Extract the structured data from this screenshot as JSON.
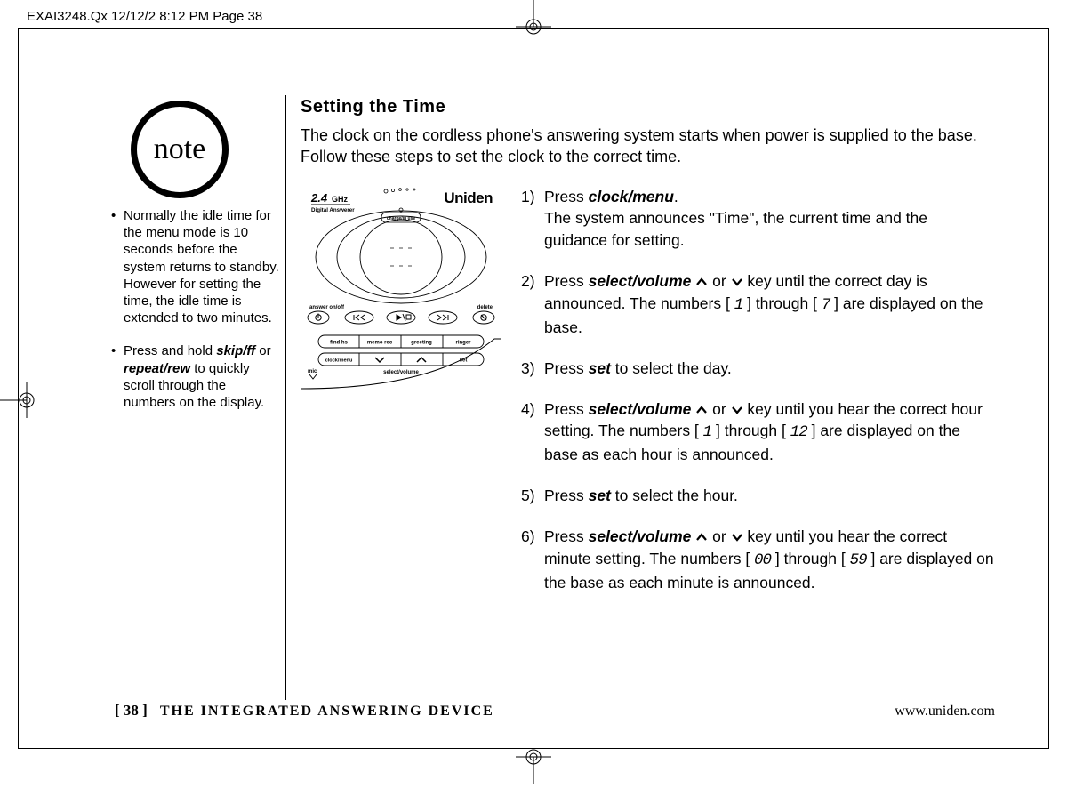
{
  "header": {
    "crop_text": "EXAI3248.Qx  12/12/2 8:12 PM  Page 38"
  },
  "note": {
    "label": "note",
    "bullets": [
      {
        "pre": "Normally the idle time for the menu mode is 10 seconds before the system returns to standby. However for setting the time, the idle time is extended to two minutes."
      },
      {
        "prefix": "Press and hold ",
        "bi1": "skip/ff",
        "mid": " or ",
        "bi2": "repeat/rew",
        "suffix": " to quickly scroll through the numbers on the display."
      }
    ]
  },
  "main": {
    "heading": "Setting the Time",
    "intro": "The clock on the cordless phone's answering system starts when power is supplied to the base. Follow these steps to set the clock to the correct time.",
    "steps": [
      {
        "num": "1)",
        "segments": [
          {
            "t": "Press "
          },
          {
            "bi": "clock/menu"
          },
          {
            "t": "."
          },
          {
            "br": true
          },
          {
            "t": "The system announces \"Time\", the current time and the guidance for setting."
          }
        ]
      },
      {
        "num": "2)",
        "segments": [
          {
            "t": "Press "
          },
          {
            "bi": "select/volume"
          },
          {
            "t": " "
          },
          {
            "chev": "up"
          },
          {
            "t": " or "
          },
          {
            "chev": "down"
          },
          {
            "t": " key until the correct day is announced. The numbers [ "
          },
          {
            "seg": "1"
          },
          {
            "t": " ] through [ "
          },
          {
            "seg": "7"
          },
          {
            "t": " ] are displayed on the base."
          }
        ]
      },
      {
        "num": "3)",
        "segments": [
          {
            "t": "Press "
          },
          {
            "bi": "set"
          },
          {
            "t": " to select the day."
          }
        ]
      },
      {
        "num": "4)",
        "segments": [
          {
            "t": "Press "
          },
          {
            "bi": "select/volume"
          },
          {
            "t": " "
          },
          {
            "chev": "up"
          },
          {
            "t": " or "
          },
          {
            "chev": "down"
          },
          {
            "t": " key until you hear the correct hour setting. The numbers [ "
          },
          {
            "seg": "1"
          },
          {
            "t": " ] through [ "
          },
          {
            "seg": "12"
          },
          {
            "t": " ] are displayed on the base as each hour is announced."
          }
        ]
      },
      {
        "num": "5)",
        "segments": [
          {
            "t": "Press "
          },
          {
            "bi": "set"
          },
          {
            "t": " to select the hour."
          }
        ]
      },
      {
        "num": "6)",
        "segments": [
          {
            "t": "Press "
          },
          {
            "bi": "select/volume"
          },
          {
            "t": " "
          },
          {
            "chev": "up"
          },
          {
            "t": " or "
          },
          {
            "chev": "down"
          },
          {
            "t": " key until you hear the correct minute setting. The numbers [ "
          },
          {
            "seg": "00"
          },
          {
            "t": " ] through [ "
          },
          {
            "seg": "59"
          },
          {
            "t": " ] are displayed on the base as each minute is announced."
          }
        ]
      }
    ]
  },
  "device": {
    "brand": "Uniden",
    "freq": "2.4",
    "ghz": "GHz",
    "subtitle": "Digital Answerer",
    "charge": "charge/in use",
    "answer": "answer on/off",
    "delete": "delete",
    "btns": [
      "find hs",
      "memo rec",
      "greeting",
      "ringer"
    ],
    "btns2": [
      "clock/menu",
      "set"
    ],
    "select_volume": "select/volume",
    "mic": "mic"
  },
  "footer": {
    "page": "[ 38 ]",
    "title": "THE INTEGRATED ANSWERING DEVICE",
    "url": "www.uniden.com"
  }
}
